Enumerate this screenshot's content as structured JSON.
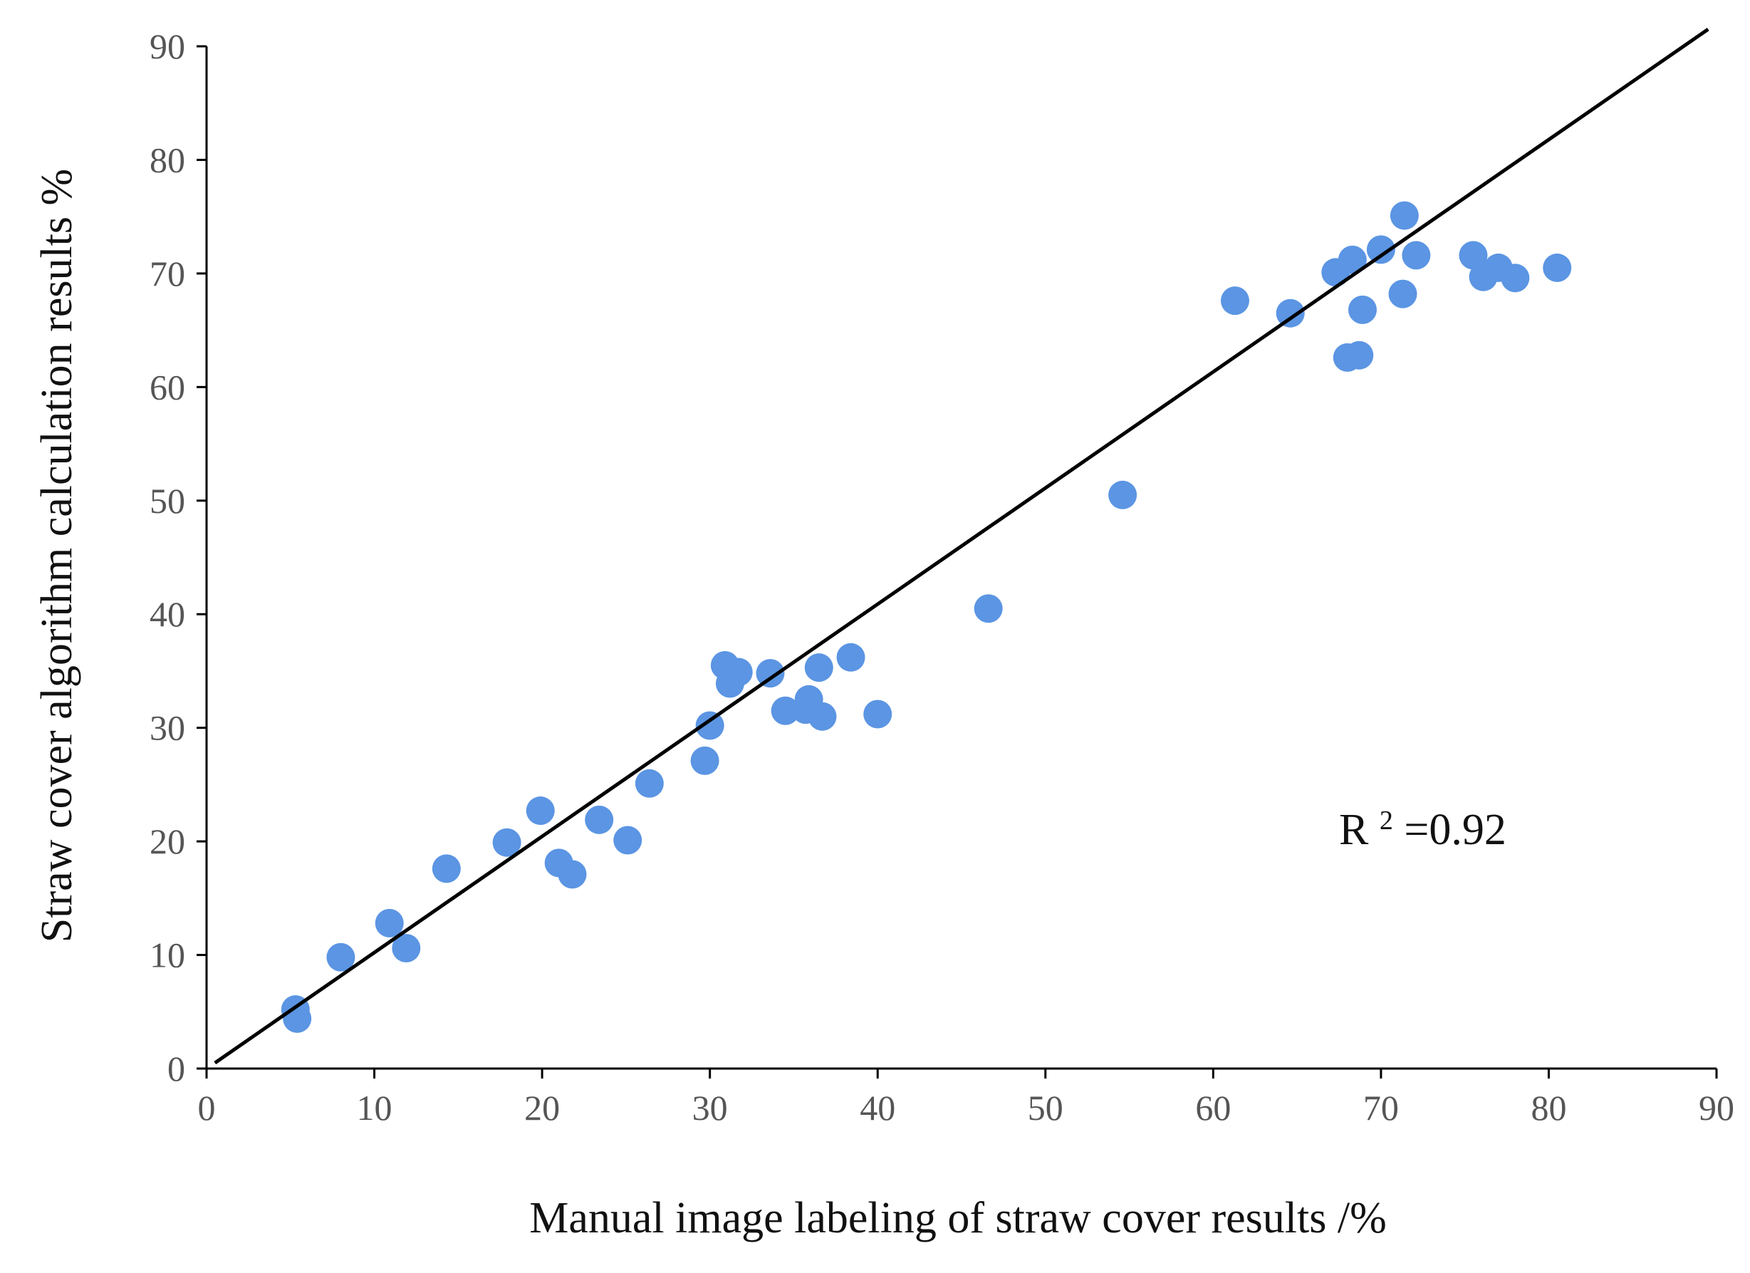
{
  "chart_data": {
    "type": "scatter",
    "title": "",
    "xlabel": "Manual image labeling of straw cover results /%",
    "ylabel": "Straw cover algorithm calculation results %",
    "xlim": [
      0,
      90
    ],
    "ylim": [
      0,
      90
    ],
    "xticks": [
      0,
      10,
      20,
      30,
      40,
      50,
      60,
      70,
      80,
      90
    ],
    "yticks": [
      0,
      10,
      20,
      30,
      40,
      50,
      60,
      70,
      80,
      90
    ],
    "x_tick_labels": [
      "0",
      "10",
      "20",
      "30",
      "40",
      "50",
      "60",
      "70",
      "80",
      "90"
    ],
    "y_tick_labels": [
      "0",
      "10",
      "20",
      "30",
      "40",
      "50",
      "60",
      "70",
      "80",
      "90"
    ],
    "grid": false,
    "legend": "none",
    "point_color": "#5b95e3",
    "line_color": "#000000",
    "fit_line": {
      "x": [
        0.5,
        89.5
      ],
      "y": [
        0.5,
        91.5
      ]
    },
    "annotation": {
      "text_base": "R",
      "superscript": "2",
      "text_value": "=0.92"
    },
    "series": [
      {
        "name": "samples",
        "points": [
          [
            5.3,
            5.2
          ],
          [
            5.4,
            4.4
          ],
          [
            8.0,
            9.8
          ],
          [
            10.9,
            12.8
          ],
          [
            11.9,
            10.6
          ],
          [
            14.3,
            17.6
          ],
          [
            17.9,
            19.9
          ],
          [
            19.9,
            22.7
          ],
          [
            21.0,
            18.1
          ],
          [
            21.8,
            17.1
          ],
          [
            23.4,
            21.9
          ],
          [
            25.1,
            20.1
          ],
          [
            26.4,
            25.1
          ],
          [
            29.7,
            27.1
          ],
          [
            30.0,
            30.2
          ],
          [
            30.9,
            35.5
          ],
          [
            31.2,
            33.9
          ],
          [
            31.7,
            34.9
          ],
          [
            33.6,
            34.8
          ],
          [
            34.5,
            31.5
          ],
          [
            35.7,
            31.6
          ],
          [
            35.9,
            32.5
          ],
          [
            36.5,
            35.3
          ],
          [
            36.7,
            31.0
          ],
          [
            38.4,
            36.2
          ],
          [
            40.0,
            31.2
          ],
          [
            46.6,
            40.5
          ],
          [
            54.6,
            50.5
          ],
          [
            61.3,
            67.6
          ],
          [
            64.6,
            66.5
          ],
          [
            67.3,
            70.1
          ],
          [
            68.0,
            62.6
          ],
          [
            68.3,
            71.2
          ],
          [
            68.7,
            62.8
          ],
          [
            68.9,
            66.8
          ],
          [
            70.0,
            72.1
          ],
          [
            71.3,
            68.2
          ],
          [
            71.4,
            75.1
          ],
          [
            72.1,
            71.6
          ],
          [
            75.5,
            71.6
          ],
          [
            76.1,
            69.7
          ],
          [
            77.0,
            70.5
          ],
          [
            78.0,
            69.6
          ],
          [
            80.5,
            70.5
          ]
        ]
      }
    ]
  }
}
